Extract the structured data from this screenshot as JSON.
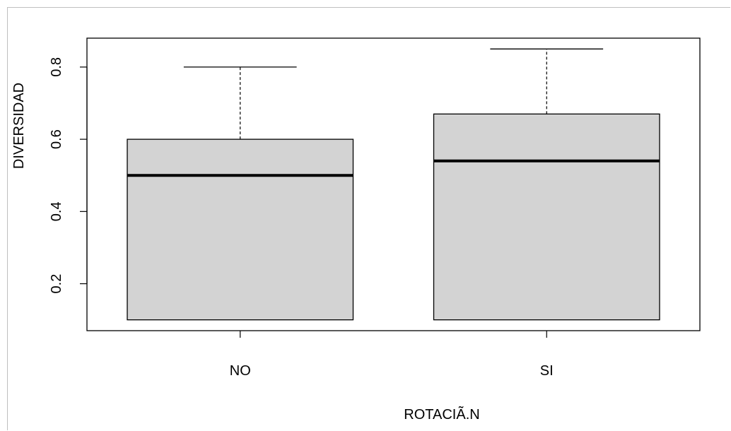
{
  "chart_data": {
    "type": "boxplot",
    "title": "",
    "xlabel": "ROTACIÃ.N",
    "ylabel": "DIVERSIDAD",
    "ylim": [
      0.07,
      0.88
    ],
    "yticks": [
      0.2,
      0.4,
      0.6,
      0.8
    ],
    "ytick_labels": [
      "0.2",
      "0.4",
      "0.6",
      "0.8"
    ],
    "grid": false,
    "categories": [
      "NO",
      "SI"
    ],
    "boxes": [
      {
        "category": "NO",
        "min": 0.1,
        "q1": 0.1,
        "median": 0.5,
        "q3": 0.6,
        "max": 0.8
      },
      {
        "category": "SI",
        "min": 0.1,
        "q1": 0.1,
        "median": 0.54,
        "q3": 0.67,
        "max": 0.85
      }
    ],
    "colors": {
      "box_fill": "#d3d3d3",
      "stroke": "#000000"
    }
  }
}
